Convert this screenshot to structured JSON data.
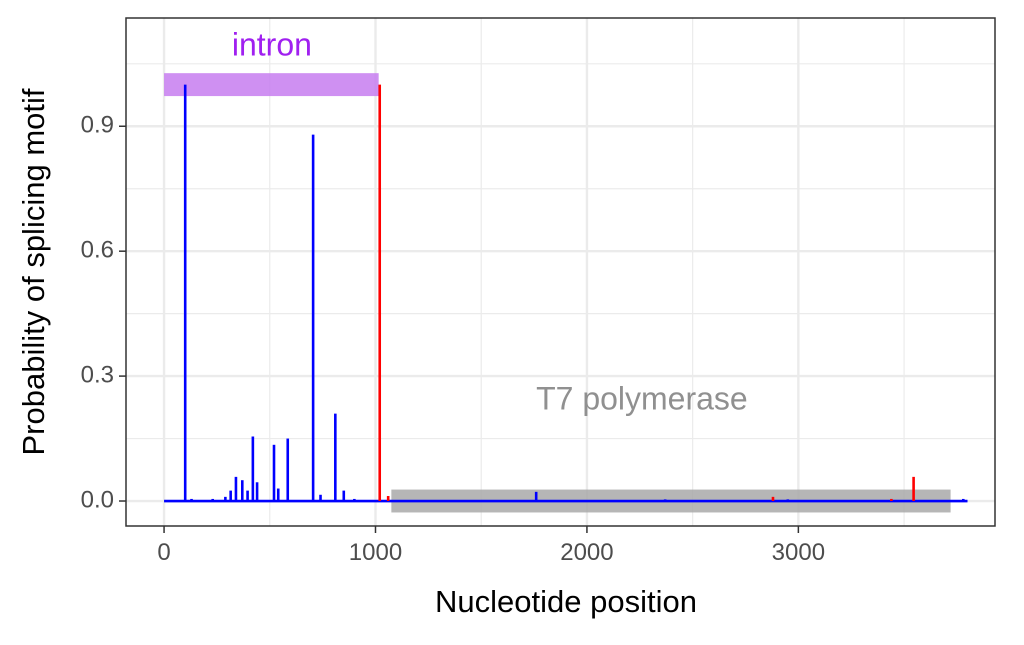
{
  "chart_data": {
    "type": "line",
    "title": "",
    "xlabel": "Nucleotide position",
    "ylabel": "Probability of splicing motif",
    "xlim": [
      -180,
      3930
    ],
    "ylim": [
      -0.06,
      1.16
    ],
    "x_ticks": [
      0,
      1000,
      2000,
      3000
    ],
    "x_tick_labels": [
      "0",
      "1000",
      "2000",
      "3000"
    ],
    "y_ticks": [
      0.0,
      0.3,
      0.6,
      0.9
    ],
    "y_tick_labels": [
      "0.0",
      "0.3",
      "0.6",
      "0.9"
    ],
    "grid": true,
    "background": "#ffffff",
    "grid_color": "#ebebeb",
    "frame_color": "#333333",
    "annotations": [
      {
        "label": "intron",
        "color": "#a020f0",
        "band_color": "#c77cf0",
        "x_start": 0,
        "x_end": 1015,
        "y_center": 1.0,
        "band_height": 0.055,
        "label_x": 510,
        "label_y": 1.09
      },
      {
        "label": "T7 polymerase",
        "color": "#909090",
        "band_color": "#a9a9a9",
        "x_start": 1075,
        "x_end": 3720,
        "y_center": 0.0,
        "band_height": 0.055,
        "label_x": 2260,
        "label_y": 0.24
      }
    ],
    "series": [
      {
        "color": "#0000ff",
        "baseline": 0.0,
        "x_start": 0,
        "x_end": 3800,
        "spikes": [
          {
            "x": 100,
            "y": 1.0
          },
          {
            "x": 130,
            "y": 0.005
          },
          {
            "x": 230,
            "y": 0.005
          },
          {
            "x": 290,
            "y": 0.01
          },
          {
            "x": 315,
            "y": 0.025
          },
          {
            "x": 340,
            "y": 0.058
          },
          {
            "x": 370,
            "y": 0.05
          },
          {
            "x": 395,
            "y": 0.025
          },
          {
            "x": 420,
            "y": 0.155
          },
          {
            "x": 440,
            "y": 0.045
          },
          {
            "x": 520,
            "y": 0.135
          },
          {
            "x": 540,
            "y": 0.03
          },
          {
            "x": 585,
            "y": 0.15
          },
          {
            "x": 705,
            "y": 0.88
          },
          {
            "x": 740,
            "y": 0.015
          },
          {
            "x": 810,
            "y": 0.21
          },
          {
            "x": 850,
            "y": 0.025
          },
          {
            "x": 900,
            "y": 0.005
          },
          {
            "x": 1760,
            "y": 0.022
          },
          {
            "x": 2370,
            "y": 0.004
          },
          {
            "x": 2950,
            "y": 0.004
          },
          {
            "x": 3780,
            "y": 0.005
          }
        ]
      },
      {
        "color": "#ff0000",
        "baseline": 0.0,
        "spikes": [
          {
            "x": 1020,
            "y": 1.0
          },
          {
            "x": 1060,
            "y": 0.012
          },
          {
            "x": 2880,
            "y": 0.01
          },
          {
            "x": 3440,
            "y": 0.005
          },
          {
            "x": 3545,
            "y": 0.058
          }
        ]
      }
    ]
  }
}
